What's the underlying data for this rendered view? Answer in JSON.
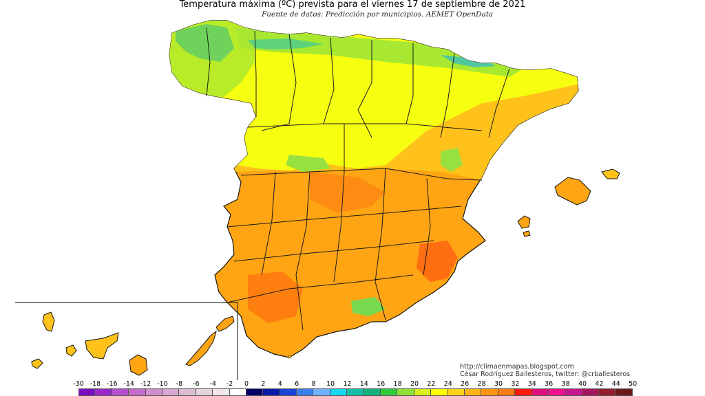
{
  "title": "Temperatura máxima (ºC) prevista para el viernes 17 de septiembre de 2021",
  "subtitle": "Fuente de datos: Predicción por municipios. AEMET OpenData",
  "credits": {
    "url": "http://climaenmapas.blogspot.com",
    "author": "César Rodríguez Ballesteros, twitter: @crballesteros"
  },
  "legend": {
    "labels": [
      "-30",
      "-18",
      "-16",
      "-14",
      "-12",
      "-10",
      "-8",
      "-6",
      "-4",
      "-2",
      "0",
      "2",
      "4",
      "6",
      "8",
      "10",
      "12",
      "14",
      "16",
      "18",
      "20",
      "22",
      "24",
      "26",
      "28",
      "30",
      "32",
      "34",
      "36",
      "38",
      "40",
      "42",
      "44",
      "50"
    ],
    "colors": [
      "#7a0dbf",
      "#9a28c8",
      "#b54fd0",
      "#c46ccc",
      "#cf8ed0",
      "#d6a7d0",
      "#dcbccf",
      "#e4d2de",
      "#efe6ee",
      "#ffffff",
      "#000066",
      "#0a1aa8",
      "#1a44d8",
      "#3b7ef0",
      "#6fb2ff",
      "#13d8f0",
      "#12c0a8",
      "#12b07a",
      "#2ecc3a",
      "#8ee03a",
      "#d6f01a",
      "#ffff00",
      "#ffd21a",
      "#ffb414",
      "#ff9612",
      "#ff7a10",
      "#ff1a10",
      "#e0107a",
      "#f0108c",
      "#c8148e",
      "#a8145c",
      "#901e2e",
      "#6a1818"
    ]
  },
  "colors": {
    "sea": "#ffffff",
    "border": "#1a1a1a",
    "temp_hot": "#ff9a12",
    "temp_warm": "#ffc41a",
    "temp_mild": "#ffff10",
    "temp_cool": "#c6f020",
    "temp_cooler": "#6ed25a",
    "temp_very_hot": "#ff6e10"
  }
}
